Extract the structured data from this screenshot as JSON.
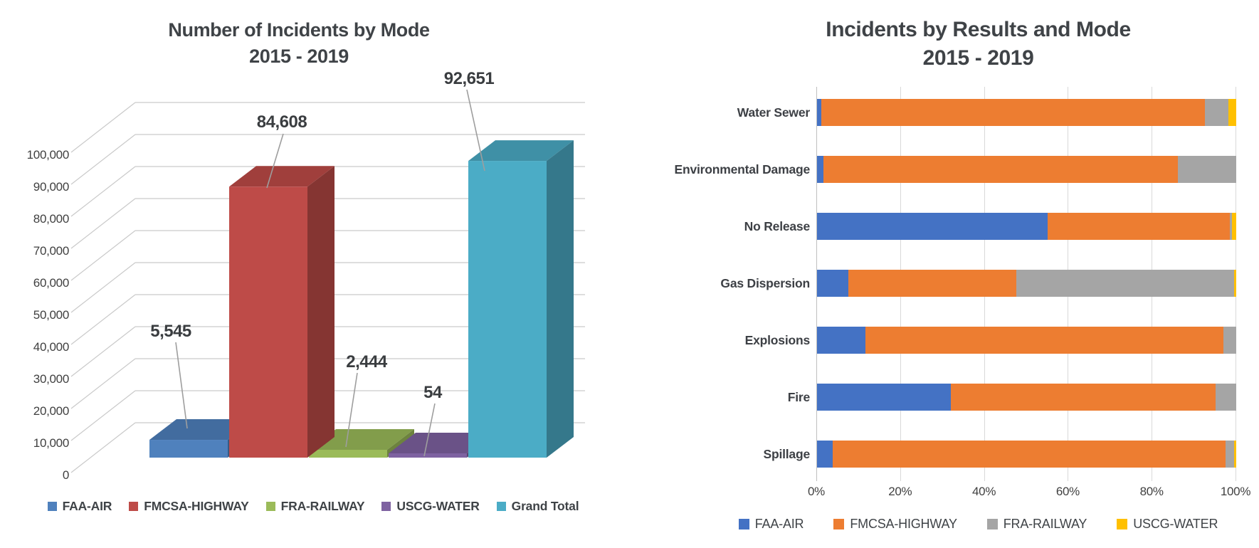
{
  "page": {
    "background": "#ffffff"
  },
  "left_chart": {
    "title_line1": "Number of Incidents by Mode",
    "title_line2": "2015 - 2019"
  },
  "right_chart": {
    "title_line1": "Incidents by Results and Mode",
    "title_line2": "2015 - 2019"
  },
  "chart_data": [
    {
      "type": "bar",
      "projection": "3d-column",
      "title": "Number of Incidents by Mode",
      "subtitle": "2015 - 2019",
      "categories": [
        "FAA-AIR",
        "FMCSA-HIGHWAY",
        "FRA-RAILWAY",
        "USCG-WATER",
        "Grand Total"
      ],
      "values": [
        5545,
        84608,
        2444,
        54,
        92651
      ],
      "data_labels": [
        "5,545",
        "84,608",
        "2,444",
        "54",
        "92,651"
      ],
      "colors": [
        "#4F81BD",
        "#BE4B48",
        "#9BBB59",
        "#7E62A1",
        "#4BACC6"
      ],
      "ylim": [
        0,
        100000
      ],
      "ytick_step": 10000,
      "ytick_labels": [
        "0",
        "10,000",
        "20,000",
        "30,000",
        "40,000",
        "50,000",
        "60,000",
        "70,000",
        "80,000",
        "90,000",
        "100,000"
      ],
      "grid": true,
      "legend_position": "bottom"
    },
    {
      "type": "bar",
      "orientation": "horizontal",
      "stacking": "percent",
      "title": "Incidents by Results and Mode",
      "subtitle": "2015 - 2019",
      "categories": [
        "Water Sewer",
        "Environmental Damage",
        "No Release",
        "Gas Dispersion",
        "Explosions",
        "Fire",
        "Spillage"
      ],
      "series": [
        {
          "name": "FAA-AIR",
          "color": "#4472C4",
          "values": [
            1.0,
            1.5,
            55.0,
            7.5,
            11.5,
            32.0,
            3.7
          ]
        },
        {
          "name": "FMCSA-HIGHWAY",
          "color": "#ED7D31",
          "values": [
            91.6,
            84.5,
            43.5,
            40.0,
            85.5,
            63.0,
            93.8
          ]
        },
        {
          "name": "FRA-RAILWAY",
          "color": "#A5A5A5",
          "values": [
            5.5,
            14.0,
            0.5,
            52.0,
            3.0,
            5.0,
            2.0
          ]
        },
        {
          "name": "USCG-WATER",
          "color": "#FFC000",
          "values": [
            1.9,
            0.0,
            1.0,
            0.5,
            0.0,
            0.0,
            0.5
          ]
        }
      ],
      "xlim": [
        0,
        100
      ],
      "xtick_labels": [
        "0%",
        "20%",
        "40%",
        "60%",
        "80%",
        "100%"
      ],
      "grid": true,
      "legend_position": "bottom"
    }
  ]
}
